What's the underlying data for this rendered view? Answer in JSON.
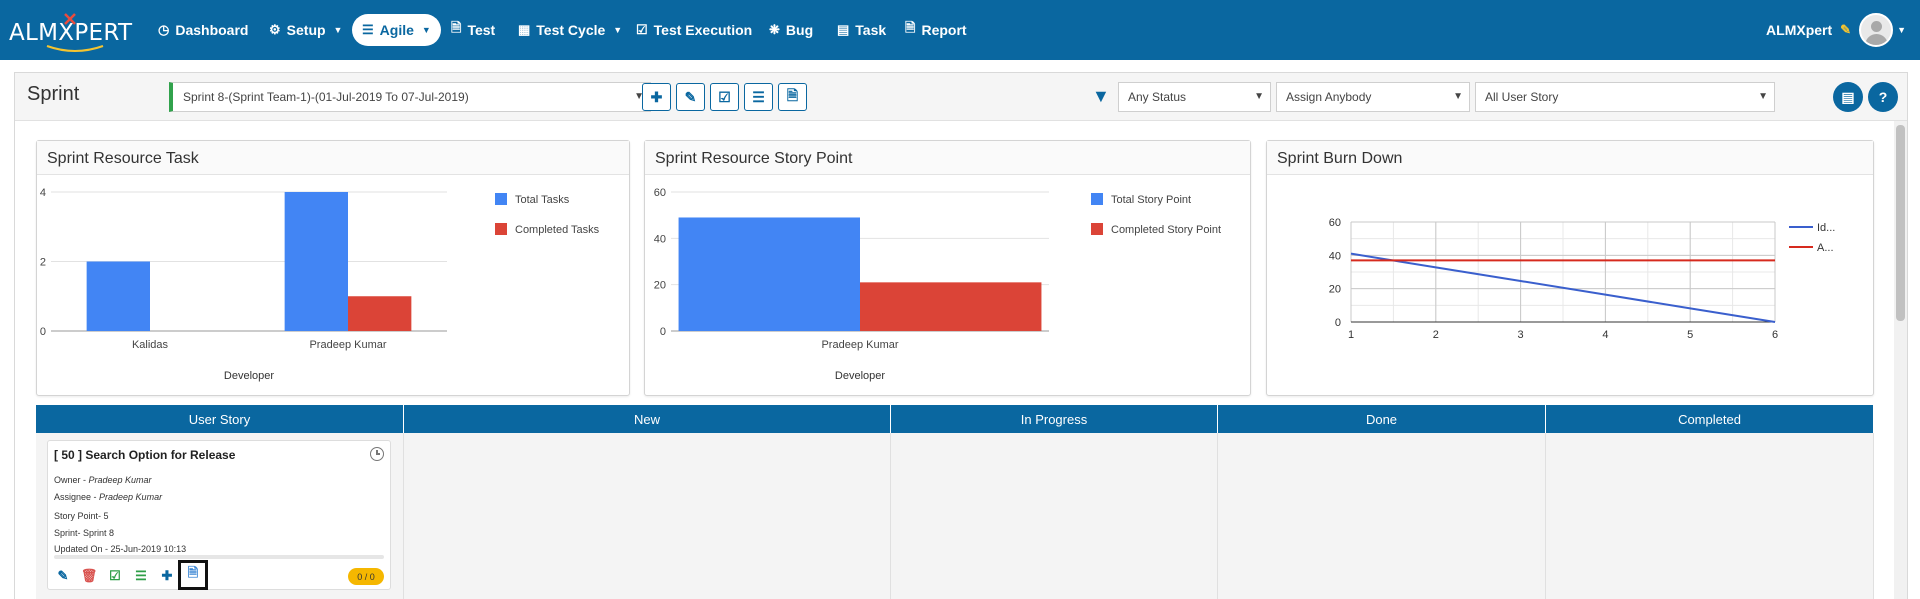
{
  "app": {
    "logo_text": "ALMXPERT",
    "user_name": "ALMXpert"
  },
  "nav": [
    {
      "label": "Dashboard",
      "icon": "dashboard-icon"
    },
    {
      "label": "Setup",
      "icon": "gears-icon",
      "dropdown": true
    },
    {
      "label": "Agile",
      "icon": "list-icon",
      "dropdown": true,
      "active": true
    },
    {
      "label": "Test",
      "icon": "file-icon"
    },
    {
      "label": "Test Cycle",
      "icon": "table-icon",
      "dropdown": true
    },
    {
      "label": "Test Execution",
      "icon": "check-square-icon"
    },
    {
      "label": "Bug",
      "icon": "bug-icon"
    },
    {
      "label": "Task",
      "icon": "tasks-icon"
    },
    {
      "label": "Report",
      "icon": "report-icon"
    }
  ],
  "toolbar": {
    "page_title": "Sprint",
    "sprint_value": "Sprint 8-(Sprint Team-1)-(01-Jul-2019 To 07-Jul-2019)",
    "buttons": [
      "plus-icon",
      "pencil-icon",
      "check-square-icon",
      "list-icon",
      "document-icon"
    ],
    "status_filter": "Any Status",
    "assign_filter": "Assign Anybody",
    "story_filter": "All User Story",
    "right_buttons": [
      "bar-chart-icon",
      "help-icon"
    ]
  },
  "charts": {
    "resource_task": {
      "title": "Sprint Resource Task"
    },
    "resource_story": {
      "title": "Sprint Resource Story Point"
    },
    "burn_down": {
      "title": "Sprint Burn Down"
    }
  },
  "chart_data": [
    {
      "type": "bar",
      "title": "Sprint Resource Task",
      "xlabel": "Developer",
      "ylabel": "",
      "categories": [
        "Kalidas",
        "Pradeep Kumar"
      ],
      "series": [
        {
          "name": "Total Tasks",
          "values": [
            2,
            4
          ],
          "color": "#4285f4"
        },
        {
          "name": "Completed Tasks",
          "values": [
            0,
            1
          ],
          "color": "#db4437"
        }
      ],
      "ylim": [
        0,
        4
      ],
      "yticks": [
        "0",
        "2",
        "4"
      ],
      "legend": "right",
      "grid": true
    },
    {
      "type": "bar",
      "title": "Sprint Resource Story Point",
      "xlabel": "Developer",
      "ylabel": "",
      "categories": [
        "Pradeep Kumar"
      ],
      "series": [
        {
          "name": "Total Story Point",
          "values": [
            49
          ],
          "color": "#4285f4"
        },
        {
          "name": "Completed Story Point",
          "values": [
            21
          ],
          "color": "#db4437"
        }
      ],
      "ylim": [
        0,
        60
      ],
      "yticks": [
        "0",
        "20",
        "40",
        "60"
      ],
      "legend": "right",
      "grid": true
    },
    {
      "type": "line",
      "title": "Sprint Burn Down",
      "xlabel": "",
      "ylabel": "",
      "x": [
        1,
        2,
        3,
        4,
        5,
        6
      ],
      "xticks": [
        "1",
        "2",
        "3",
        "4",
        "5",
        "6"
      ],
      "series": [
        {
          "name": "Id...",
          "values": [
            41,
            32.8,
            24.6,
            16.4,
            8.2,
            0
          ],
          "color": "#3a5fcd"
        },
        {
          "name": "A...",
          "values": [
            37,
            37,
            37,
            37,
            37,
            37
          ],
          "color": "#d62a1e"
        }
      ],
      "ylim": [
        0,
        60
      ],
      "yticks": [
        "0",
        "20",
        "40",
        "60"
      ],
      "legend": "right",
      "grid": true
    }
  ],
  "board": {
    "columns": [
      "User Story",
      "New",
      "In Progress",
      "Done",
      "Completed"
    ],
    "story": {
      "title": "[ 50 ] Search Option for Release",
      "owner_label": "Owner - ",
      "owner": "Pradeep Kumar",
      "assignee_label": "Assignee - ",
      "assignee": "Pradeep Kumar",
      "story_point": "Story Point- 5",
      "sprint": "Sprint- Sprint 8",
      "updated": "Updated On - 25-Jun-2019 10:13",
      "badge": "0 / 0",
      "actions": [
        "pencil-icon",
        "trash-icon",
        "check-square-icon",
        "list-icon",
        "plus-icon",
        "document-icon"
      ]
    }
  }
}
